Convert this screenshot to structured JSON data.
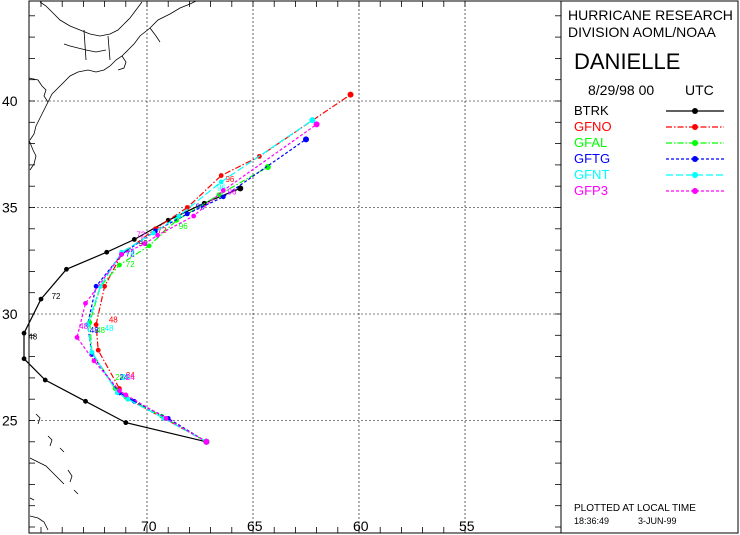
{
  "header": {
    "org_line1": "HURRICANE RESEARCH",
    "org_line2": "DIVISION AOML/NOAA",
    "storm_name": "DANIELLE",
    "datetime": "8/29/98 00",
    "tz": "UTC"
  },
  "footer": {
    "plotted_note": "PLOTTED AT LOCAL TIME",
    "time": "18:36:49",
    "date": "3-JUN-99"
  },
  "chart_data": {
    "type": "line",
    "title": "DANIELLE",
    "xlabel": "",
    "ylabel": "",
    "lon_range_w": [
      77,
      55
    ],
    "lat_range_n": [
      20,
      45
    ],
    "x_tick_labels": [
      "70",
      "65",
      "60",
      "55"
    ],
    "y_tick_labels": [
      "40",
      "35",
      "30",
      "25"
    ],
    "x_ticks": [
      70,
      65,
      60,
      55
    ],
    "y_ticks": [
      40,
      35,
      30,
      25
    ],
    "grid": true,
    "legend_position": "right",
    "series": [
      {
        "name": "BTRK",
        "color": "#000000",
        "dash": "solid",
        "points": [
          [
            67.2,
            24.0
          ],
          [
            71.0,
            24.9
          ],
          [
            72.9,
            25.9
          ],
          [
            74.8,
            26.9
          ],
          [
            75.8,
            27.9
          ],
          [
            75.8,
            29.1
          ],
          [
            75.0,
            30.7
          ],
          [
            73.8,
            32.1
          ],
          [
            71.9,
            32.9
          ],
          [
            70.6,
            33.5
          ],
          [
            69.0,
            34.4
          ],
          [
            67.3,
            35.2
          ],
          [
            65.6,
            35.9
          ]
        ],
        "tau_labels": [
          {
            "t": "48",
            "lon": 75.6,
            "lat": 28.8
          },
          {
            "t": "72",
            "lon": 74.5,
            "lat": 30.7
          },
          {
            "t": "96",
            "lon": 70.4,
            "lat": 33.2
          }
        ]
      },
      {
        "name": "GFNO",
        "color": "#ff0000",
        "dash": "dashdot",
        "points": [
          [
            67.2,
            24.0
          ],
          [
            69.2,
            25.1
          ],
          [
            70.9,
            26.0
          ],
          [
            71.3,
            26.5
          ],
          [
            72.3,
            28.3
          ],
          [
            72.4,
            29.5
          ],
          [
            72.0,
            31.3
          ],
          [
            71.2,
            32.8
          ],
          [
            69.6,
            34.0
          ],
          [
            68.1,
            35.0
          ],
          [
            66.5,
            36.5
          ],
          [
            64.7,
            37.4
          ],
          [
            60.4,
            40.3
          ]
        ],
        "tau_labels": [
          {
            "t": "24",
            "lon": 71.0,
            "lat": 27.0
          },
          {
            "t": "48",
            "lon": 71.8,
            "lat": 29.6
          },
          {
            "t": "72",
            "lon": 69.5,
            "lat": 33.8
          },
          {
            "t": "96",
            "lon": 66.3,
            "lat": 36.2
          }
        ]
      },
      {
        "name": "GFAL",
        "color": "#00ff00",
        "dash": "dashdot",
        "points": [
          [
            67.2,
            24.0
          ],
          [
            69.3,
            25.2
          ],
          [
            71.0,
            26.1
          ],
          [
            71.5,
            26.5
          ],
          [
            72.6,
            28.2
          ],
          [
            72.7,
            29.6
          ],
          [
            72.2,
            31.3
          ],
          [
            71.3,
            32.3
          ],
          [
            69.9,
            33.2
          ],
          [
            68.6,
            34.4
          ],
          [
            66.6,
            35.6
          ],
          [
            64.3,
            36.9
          ]
        ],
        "tau_labels": [
          {
            "t": "24",
            "lon": 71.5,
            "lat": 26.9
          },
          {
            "t": "48",
            "lon": 72.4,
            "lat": 29.1
          },
          {
            "t": "72",
            "lon": 71.0,
            "lat": 32.2
          },
          {
            "t": "96",
            "lon": 68.5,
            "lat": 34.0
          }
        ]
      },
      {
        "name": "GFTG",
        "color": "#0000ff",
        "dash": "dashed",
        "points": [
          [
            67.2,
            24.0
          ],
          [
            69.0,
            25.1
          ],
          [
            70.6,
            25.9
          ],
          [
            71.3,
            26.3
          ],
          [
            72.6,
            28.1
          ],
          [
            72.8,
            29.5
          ],
          [
            72.4,
            31.3
          ],
          [
            71.2,
            32.8
          ],
          [
            69.6,
            33.9
          ],
          [
            68.1,
            34.7
          ],
          [
            66.4,
            35.5
          ],
          [
            62.5,
            38.2
          ]
        ],
        "tau_labels": [
          {
            "t": "24",
            "lon": 71.3,
            "lat": 26.9
          },
          {
            "t": "48",
            "lon": 72.7,
            "lat": 29.1
          },
          {
            "t": "72",
            "lon": 71.0,
            "lat": 32.7
          },
          {
            "t": "96",
            "lon": 67.7,
            "lat": 34.9
          }
        ]
      },
      {
        "name": "GFNT",
        "color": "#00ffff",
        "dash": "longdash",
        "points": [
          [
            67.2,
            24.0
          ],
          [
            69.2,
            25.1
          ],
          [
            70.9,
            26.0
          ],
          [
            71.4,
            26.3
          ],
          [
            72.6,
            28.2
          ],
          [
            72.8,
            29.5
          ],
          [
            72.2,
            31.3
          ],
          [
            71.2,
            32.9
          ],
          [
            69.7,
            33.8
          ],
          [
            68.5,
            34.6
          ],
          [
            66.5,
            36.2
          ],
          [
            62.2,
            39.1
          ]
        ],
        "tau_labels": [
          {
            "t": "24",
            "lon": 71.2,
            "lat": 26.9
          },
          {
            "t": "48",
            "lon": 72.0,
            "lat": 29.2
          },
          {
            "t": "72",
            "lon": 71.0,
            "lat": 32.8
          },
          {
            "t": "96",
            "lon": 66.7,
            "lat": 35.8
          }
        ]
      },
      {
        "name": "GFP3",
        "color": "#ff00ff",
        "dash": "dashed",
        "points": [
          [
            67.2,
            24.0
          ],
          [
            69.1,
            25.1
          ],
          [
            71.0,
            26.2
          ],
          [
            71.3,
            26.4
          ],
          [
            72.5,
            27.8
          ],
          [
            73.3,
            28.9
          ],
          [
            72.9,
            30.5
          ],
          [
            71.2,
            32.8
          ],
          [
            70.1,
            33.3
          ],
          [
            69.5,
            33.7
          ],
          [
            67.8,
            34.6
          ],
          [
            66.4,
            35.8
          ],
          [
            62.0,
            38.9
          ]
        ],
        "tau_labels": [
          {
            "t": "24",
            "lon": 71.0,
            "lat": 26.9
          },
          {
            "t": "48",
            "lon": 73.2,
            "lat": 29.3
          },
          {
            "t": "72",
            "lon": 70.5,
            "lat": 33.6
          },
          {
            "t": "96",
            "lon": 66.2,
            "lat": 35.6
          }
        ]
      }
    ]
  }
}
